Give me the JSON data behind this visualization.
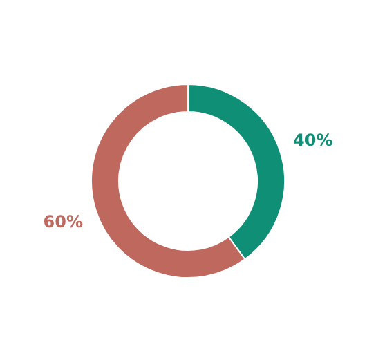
{
  "chart_data": {
    "type": "donut",
    "categories": [
      null,
      null
    ],
    "values": [
      40,
      60
    ],
    "colors": [
      "#0e8f76",
      "#bf685e"
    ],
    "value_labels": [
      "40%",
      "60%"
    ]
  }
}
